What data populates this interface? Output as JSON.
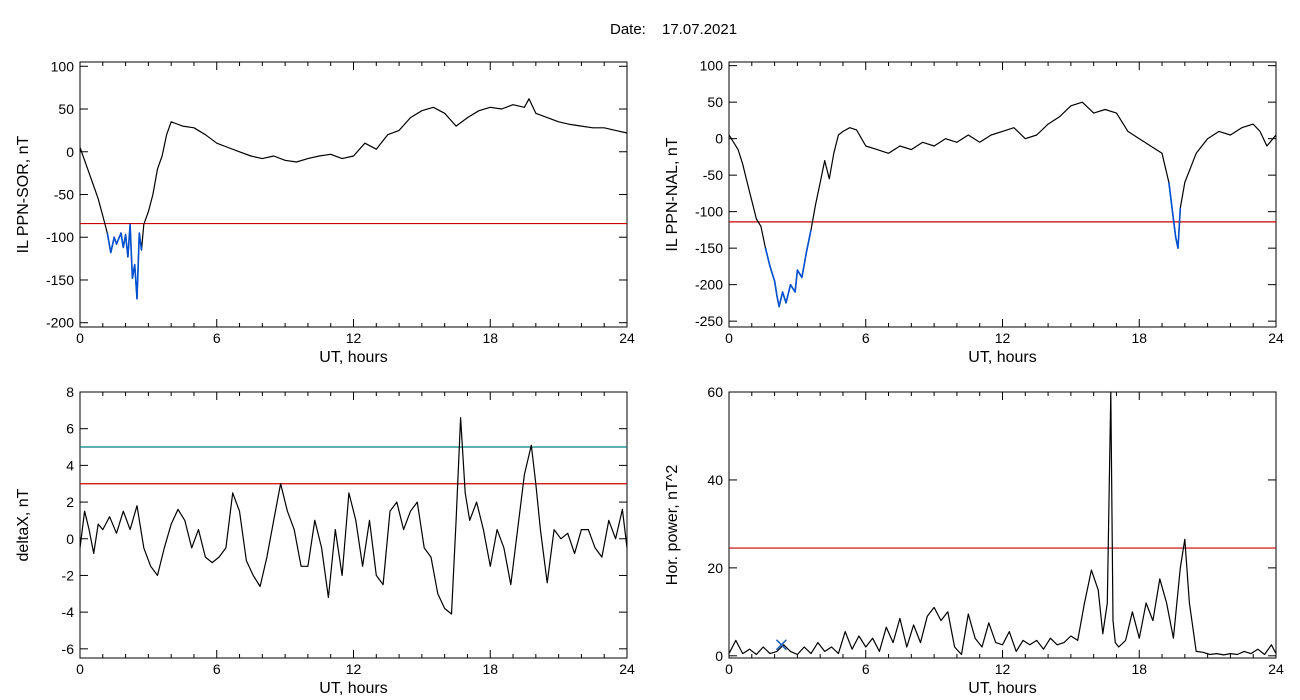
{
  "header": {
    "date_label": "Date:",
    "date_value": "17.07.2021"
  },
  "colors": {
    "trace": "#000000",
    "threshold": "#cc0000",
    "threshold2": "#008080",
    "substorm": "#0050d0",
    "marker_blue": "#1f5fbf",
    "marker_green": "#2e8b2e"
  },
  "chart_data": [
    {
      "id": "ppn_sor",
      "type": "line",
      "xlabel": "UT, hours",
      "ylabel": "IL PPN-SOR, nT",
      "xlim": [
        0,
        24
      ],
      "ylim": [
        -205,
        105
      ],
      "xticks": [
        0,
        6,
        12,
        18,
        24
      ],
      "yticks": [
        100,
        50,
        0,
        -50,
        -100,
        -150,
        -200
      ],
      "thresholds": [
        {
          "value": -84,
          "color": "#cc0000"
        }
      ],
      "highlight": {
        "x_range": [
          1.2,
          2.7
        ],
        "color": "#0050d0"
      },
      "series": [
        {
          "x": [
            0,
            0.2,
            0.4,
            0.6,
            0.8,
            1.0,
            1.2,
            1.35,
            1.5,
            1.6,
            1.8,
            1.9,
            2.0,
            2.1,
            2.2,
            2.3,
            2.4,
            2.5,
            2.6,
            2.7,
            2.8,
            3.0,
            3.2,
            3.4,
            3.6,
            3.8,
            4.0,
            4.2,
            4.5,
            5.0,
            5.5,
            6.0,
            6.5,
            7.0,
            7.5,
            8.0,
            8.5,
            9.0,
            9.5,
            10.0,
            10.5,
            11.0,
            11.5,
            12.0,
            12.5,
            13.0,
            13.5,
            14.0,
            14.5,
            15.0,
            15.5,
            16.0,
            16.5,
            17.0,
            17.5,
            18.0,
            18.5,
            19.0,
            19.5,
            19.7,
            20.0,
            20.5,
            21.0,
            21.5,
            22.0,
            22.5,
            23.0,
            23.5,
            24.0
          ],
          "y": [
            5,
            -10,
            -25,
            -40,
            -55,
            -75,
            -95,
            -118,
            -100,
            -108,
            -95,
            -112,
            -97,
            -123,
            -85,
            -148,
            -132,
            -172,
            -95,
            -115,
            -85,
            -70,
            -50,
            -20,
            -5,
            20,
            35,
            33,
            30,
            28,
            20,
            10,
            5,
            0,
            -5,
            -8,
            -5,
            -10,
            -12,
            -8,
            -5,
            -3,
            -8,
            -5,
            10,
            3,
            20,
            25,
            40,
            48,
            52,
            45,
            30,
            40,
            48,
            52,
            50,
            55,
            52,
            62,
            45,
            40,
            35,
            32,
            30,
            28,
            28,
            25,
            22
          ]
        }
      ]
    },
    {
      "id": "ppn_nal",
      "type": "line",
      "xlabel": "UT, hours",
      "ylabel": "IL PPN-NAL, nT",
      "xlim": [
        0,
        24
      ],
      "ylim": [
        -258,
        105
      ],
      "xticks": [
        0,
        6,
        12,
        18,
        24
      ],
      "yticks": [
        100,
        50,
        0,
        -50,
        -100,
        -150,
        -200,
        -250
      ],
      "thresholds": [
        {
          "value": -114,
          "color": "#cc0000"
        }
      ],
      "highlight": {
        "x_range": [
          1.5,
          3.6
        ],
        "color": "#0050d0",
        "x_range2": [
          19.3,
          19.8
        ]
      },
      "series": [
        {
          "x": [
            0,
            0.2,
            0.4,
            0.6,
            0.8,
            1.0,
            1.2,
            1.4,
            1.6,
            1.8,
            2.0,
            2.1,
            2.2,
            2.35,
            2.5,
            2.7,
            2.9,
            3.0,
            3.2,
            3.4,
            3.6,
            3.8,
            4.0,
            4.2,
            4.4,
            4.6,
            4.8,
            5.0,
            5.3,
            5.6,
            6.0,
            6.5,
            7.0,
            7.5,
            8.0,
            8.5,
            9.0,
            9.5,
            10.0,
            10.5,
            11.0,
            11.5,
            12.0,
            12.5,
            13.0,
            13.5,
            14.0,
            14.5,
            15.0,
            15.5,
            16.0,
            16.5,
            17.0,
            17.5,
            18.0,
            18.5,
            19.0,
            19.3,
            19.5,
            19.6,
            19.7,
            19.8,
            20.0,
            20.5,
            21.0,
            21.5,
            22.0,
            22.5,
            23.0,
            23.3,
            23.6,
            24.0
          ],
          "y": [
            5,
            -5,
            -15,
            -35,
            -60,
            -85,
            -110,
            -120,
            -150,
            -175,
            -195,
            -215,
            -230,
            -210,
            -225,
            -200,
            -210,
            -180,
            -190,
            -155,
            -125,
            -90,
            -60,
            -30,
            -55,
            -20,
            5,
            10,
            15,
            12,
            -10,
            -15,
            -20,
            -10,
            -15,
            -5,
            -10,
            0,
            -5,
            5,
            -5,
            5,
            10,
            15,
            0,
            5,
            20,
            30,
            45,
            50,
            35,
            40,
            35,
            10,
            0,
            -10,
            -20,
            -60,
            -110,
            -135,
            -150,
            -95,
            -60,
            -20,
            0,
            10,
            5,
            15,
            20,
            10,
            -10,
            5
          ]
        }
      ]
    },
    {
      "id": "deltax",
      "type": "line",
      "xlabel": "UT, hours",
      "ylabel": "deltaX, nT",
      "xlim": [
        0,
        24
      ],
      "ylim": [
        -6.5,
        8
      ],
      "xticks": [
        0,
        6,
        12,
        18,
        24
      ],
      "yticks": [
        8,
        6,
        4,
        2,
        0,
        -2,
        -4,
        -6
      ],
      "thresholds": [
        {
          "value": 5,
          "color": "#008080"
        },
        {
          "value": 3,
          "color": "#cc0000"
        }
      ],
      "series": [
        {
          "x": [
            0,
            0.2,
            0.4,
            0.6,
            0.8,
            1.0,
            1.3,
            1.6,
            1.9,
            2.2,
            2.5,
            2.8,
            3.1,
            3.4,
            3.7,
            4.0,
            4.3,
            4.6,
            4.9,
            5.2,
            5.5,
            5.8,
            6.1,
            6.4,
            6.7,
            7.0,
            7.3,
            7.6,
            7.9,
            8.2,
            8.5,
            8.8,
            9.1,
            9.4,
            9.7,
            10.0,
            10.3,
            10.6,
            10.9,
            11.2,
            11.5,
            11.8,
            12.1,
            12.4,
            12.7,
            13.0,
            13.3,
            13.6,
            13.9,
            14.2,
            14.5,
            14.8,
            15.1,
            15.4,
            15.7,
            16.0,
            16.3,
            16.5,
            16.7,
            16.9,
            17.1,
            17.4,
            17.7,
            18.0,
            18.3,
            18.6,
            18.9,
            19.2,
            19.5,
            19.8,
            20.0,
            20.2,
            20.5,
            20.8,
            21.1,
            21.4,
            21.7,
            22.0,
            22.3,
            22.6,
            22.9,
            23.2,
            23.5,
            23.8,
            24.0
          ],
          "y": [
            -0.5,
            1.5,
            0.5,
            -0.8,
            0.8,
            0.5,
            1.2,
            0.3,
            1.5,
            0.5,
            1.8,
            -0.5,
            -1.5,
            -2.0,
            -0.5,
            0.8,
            1.6,
            1.0,
            -0.5,
            0.5,
            -1.0,
            -1.3,
            -1.0,
            -0.5,
            2.5,
            1.5,
            -1.2,
            -2.0,
            -2.6,
            -1.0,
            1.0,
            3.0,
            1.5,
            0.5,
            -1.5,
            -1.5,
            1.0,
            -0.5,
            -3.2,
            0.5,
            -2.0,
            2.5,
            1.0,
            -1.5,
            1.0,
            -2.0,
            -2.5,
            1.5,
            2.0,
            0.5,
            1.5,
            2.0,
            -0.5,
            -1.0,
            -3.0,
            -3.8,
            -4.1,
            1.0,
            6.6,
            2.5,
            1.0,
            2.0,
            0.5,
            -1.5,
            0.5,
            -0.5,
            -2.5,
            0.5,
            3.5,
            5.1,
            3.0,
            0.5,
            -2.4,
            0.5,
            0.0,
            0.3,
            -0.8,
            0.5,
            0.5,
            -0.5,
            -1.0,
            1.0,
            0.0,
            1.6,
            -0.5
          ]
        }
      ]
    },
    {
      "id": "hor_power",
      "type": "line",
      "xlabel": "UT, hours",
      "ylabel": "Hor. power, nT^2",
      "xlim": [
        0,
        24
      ],
      "ylim": [
        -0.5,
        60
      ],
      "xticks": [
        0,
        6,
        12,
        18,
        24
      ],
      "yticks": [
        60,
        40,
        20,
        0
      ],
      "thresholds": [
        {
          "value": 24.5,
          "color": "#cc0000"
        }
      ],
      "markers": [
        {
          "x": 2.3,
          "y": 2.5,
          "symbol": "x",
          "color": "#1f5fbf"
        }
      ],
      "series": [
        {
          "x": [
            0,
            0.3,
            0.6,
            0.9,
            1.2,
            1.5,
            1.8,
            2.1,
            2.4,
            2.7,
            3.0,
            3.3,
            3.6,
            3.9,
            4.2,
            4.5,
            4.8,
            5.1,
            5.4,
            5.7,
            6.0,
            6.3,
            6.6,
            6.9,
            7.2,
            7.5,
            7.8,
            8.1,
            8.4,
            8.7,
            9.0,
            9.3,
            9.6,
            9.9,
            10.2,
            10.5,
            10.8,
            11.1,
            11.4,
            11.7,
            12.0,
            12.3,
            12.6,
            12.9,
            13.2,
            13.5,
            13.8,
            14.1,
            14.4,
            14.7,
            15.0,
            15.3,
            15.6,
            15.9,
            16.2,
            16.4,
            16.6,
            16.75,
            16.85,
            16.95,
            17.1,
            17.4,
            17.7,
            18.0,
            18.3,
            18.6,
            18.9,
            19.2,
            19.5,
            19.8,
            20.0,
            20.2,
            20.5,
            20.8,
            21.1,
            21.4,
            21.7,
            22.0,
            22.3,
            22.6,
            22.9,
            23.2,
            23.5,
            23.8,
            24.0
          ],
          "y": [
            0.5,
            3.5,
            0.5,
            1.5,
            0.3,
            2.0,
            0.5,
            1.0,
            2.5,
            1.0,
            0.3,
            2.0,
            0.5,
            3.0,
            1.0,
            2.0,
            0.5,
            5.5,
            1.5,
            4.5,
            2.0,
            4.0,
            1.0,
            6.5,
            3.0,
            8.5,
            2.0,
            7.0,
            3.0,
            9.0,
            11.0,
            8.0,
            10.0,
            2.0,
            0.3,
            9.5,
            4.0,
            2.0,
            7.5,
            3.0,
            2.5,
            5.5,
            1.0,
            3.5,
            2.5,
            3.5,
            1.5,
            4.0,
            2.5,
            3.0,
            4.5,
            3.5,
            12.0,
            19.5,
            15.0,
            5.0,
            12.0,
            60.0,
            8.0,
            3.0,
            2.0,
            3.5,
            10.0,
            4.0,
            12.0,
            8.0,
            17.5,
            12.0,
            4.0,
            20.0,
            26.5,
            12.0,
            1.0,
            0.8,
            0.3,
            0.5,
            0.2,
            0.5,
            0.3,
            1.0,
            0.5,
            1.5,
            0.3,
            2.5,
            0.5
          ]
        }
      ]
    }
  ]
}
